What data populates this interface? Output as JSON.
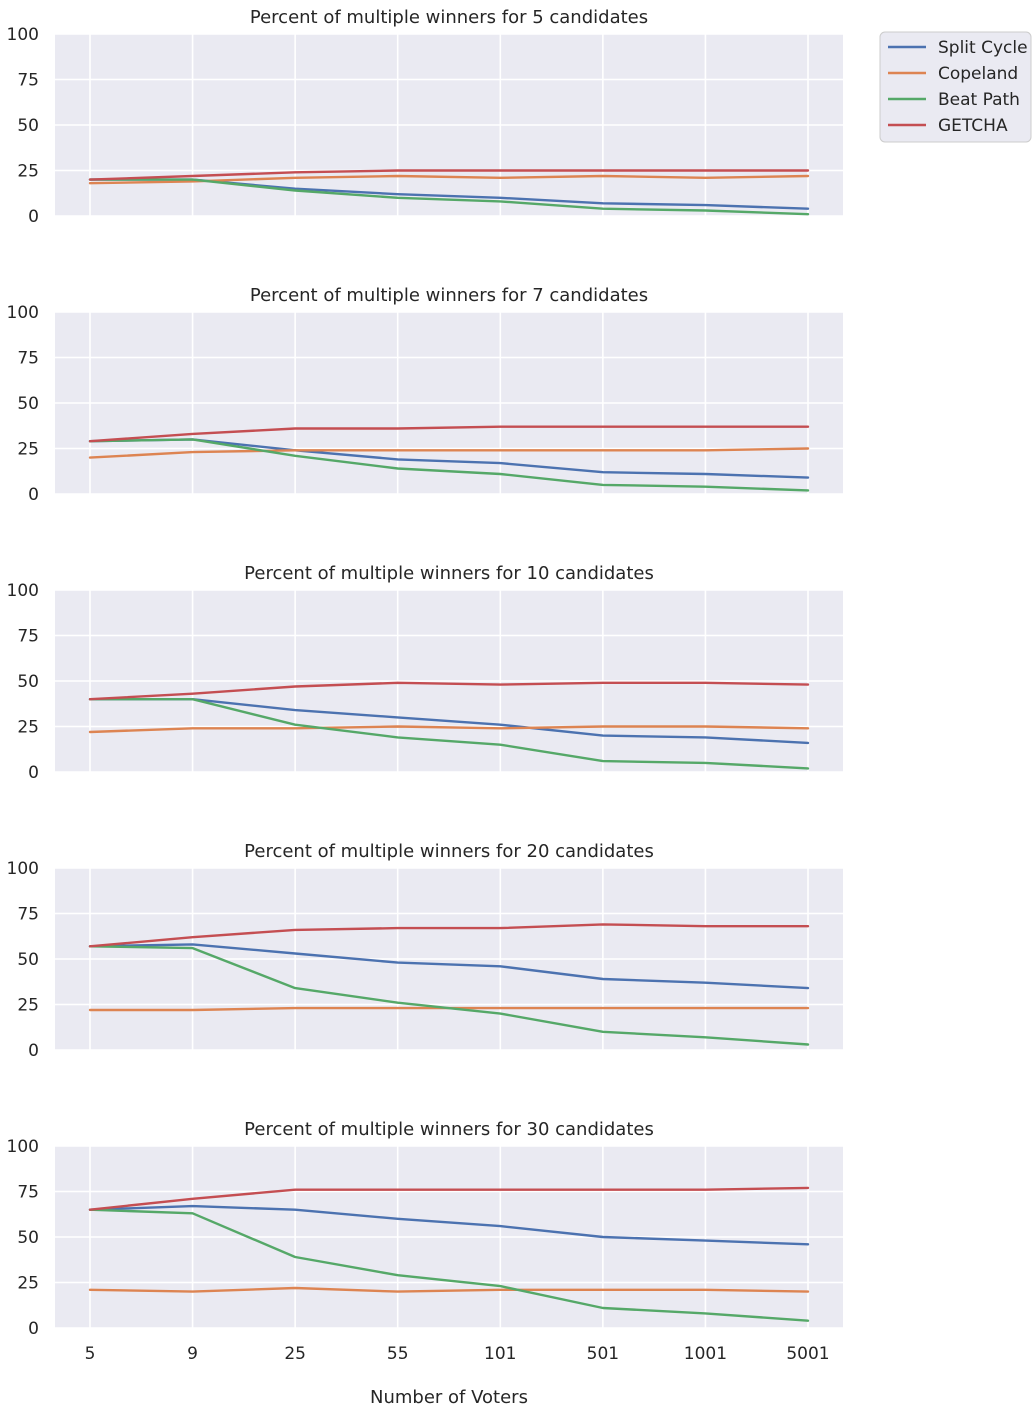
{
  "figure": {
    "xlabel": "Number of Voters",
    "x_ticks": [
      "5",
      "9",
      "25",
      "55",
      "101",
      "501",
      "1001",
      "5001"
    ],
    "y_ticks": [
      "0",
      "25",
      "50",
      "75",
      "100"
    ],
    "colors": {
      "background": "#eaeaf2",
      "grid": "#ffffff",
      "split_cycle": "#4c72b0",
      "copeland": "#dd8452",
      "beat_path": "#55a868",
      "getcha": "#c44e52"
    }
  },
  "legend": {
    "placement": "upper-right-outside",
    "entries": [
      {
        "label": "Split Cycle",
        "color": "#4c72b0"
      },
      {
        "label": "Copeland",
        "color": "#dd8452"
      },
      {
        "label": "Beat Path",
        "color": "#55a868"
      },
      {
        "label": "GETCHA",
        "color": "#c44e52"
      }
    ]
  },
  "chart_data": [
    {
      "type": "line",
      "title": "Percent of multiple winners for 5 candidates",
      "categories": [
        "5",
        "9",
        "25",
        "55",
        "101",
        "501",
        "1001",
        "5001"
      ],
      "ylim": [
        0,
        100
      ],
      "grid": true,
      "series": [
        {
          "name": "Split Cycle",
          "values": [
            20,
            20,
            15,
            12,
            10,
            7,
            6,
            4
          ]
        },
        {
          "name": "Copeland",
          "values": [
            18,
            19,
            21,
            22,
            21,
            22,
            21,
            22
          ]
        },
        {
          "name": "Beat Path",
          "values": [
            20,
            20,
            14,
            10,
            8,
            4,
            3,
            1
          ]
        },
        {
          "name": "GETCHA",
          "values": [
            20,
            22,
            24,
            25,
            25,
            25,
            25,
            25
          ]
        }
      ]
    },
    {
      "type": "line",
      "title": "Percent of multiple winners for 7 candidates",
      "categories": [
        "5",
        "9",
        "25",
        "55",
        "101",
        "501",
        "1001",
        "5001"
      ],
      "ylim": [
        0,
        100
      ],
      "grid": true,
      "series": [
        {
          "name": "Split Cycle",
          "values": [
            29,
            30,
            24,
            19,
            17,
            12,
            11,
            9
          ]
        },
        {
          "name": "Copeland",
          "values": [
            20,
            23,
            24,
            24,
            24,
            24,
            24,
            25
          ]
        },
        {
          "name": "Beat Path",
          "values": [
            29,
            30,
            21,
            14,
            11,
            5,
            4,
            2
          ]
        },
        {
          "name": "GETCHA",
          "values": [
            29,
            33,
            36,
            36,
            37,
            37,
            37,
            37
          ]
        }
      ]
    },
    {
      "type": "line",
      "title": "Percent of multiple winners for 10 candidates",
      "categories": [
        "5",
        "9",
        "25",
        "55",
        "101",
        "501",
        "1001",
        "5001"
      ],
      "ylim": [
        0,
        100
      ],
      "grid": true,
      "series": [
        {
          "name": "Split Cycle",
          "values": [
            40,
            40,
            34,
            30,
            26,
            20,
            19,
            16
          ]
        },
        {
          "name": "Copeland",
          "values": [
            22,
            24,
            24,
            25,
            24,
            25,
            25,
            24
          ]
        },
        {
          "name": "Beat Path",
          "values": [
            40,
            40,
            26,
            19,
            15,
            6,
            5,
            2
          ]
        },
        {
          "name": "GETCHA",
          "values": [
            40,
            43,
            47,
            49,
            48,
            49,
            49,
            48
          ]
        }
      ]
    },
    {
      "type": "line",
      "title": "Percent of multiple winners for 20 candidates",
      "categories": [
        "5",
        "9",
        "25",
        "55",
        "101",
        "501",
        "1001",
        "5001"
      ],
      "ylim": [
        0,
        100
      ],
      "grid": true,
      "series": [
        {
          "name": "Split Cycle",
          "values": [
            57,
            58,
            53,
            48,
            46,
            39,
            37,
            34
          ]
        },
        {
          "name": "Copeland",
          "values": [
            22,
            22,
            23,
            23,
            23,
            23,
            23,
            23
          ]
        },
        {
          "name": "Beat Path",
          "values": [
            57,
            56,
            34,
            26,
            20,
            10,
            7,
            3
          ]
        },
        {
          "name": "GETCHA",
          "values": [
            57,
            62,
            66,
            67,
            67,
            69,
            68,
            68
          ]
        }
      ]
    },
    {
      "type": "line",
      "title": "Percent of multiple winners for 30 candidates",
      "categories": [
        "5",
        "9",
        "25",
        "55",
        "101",
        "501",
        "1001",
        "5001"
      ],
      "ylim": [
        0,
        100
      ],
      "grid": true,
      "series": [
        {
          "name": "Split Cycle",
          "values": [
            65,
            67,
            65,
            60,
            56,
            50,
            48,
            46
          ]
        },
        {
          "name": "Copeland",
          "values": [
            21,
            20,
            22,
            20,
            21,
            21,
            21,
            20
          ]
        },
        {
          "name": "Beat Path",
          "values": [
            65,
            63,
            39,
            29,
            23,
            11,
            8,
            4
          ]
        },
        {
          "name": "GETCHA",
          "values": [
            65,
            71,
            76,
            76,
            76,
            76,
            76,
            77
          ]
        }
      ]
    }
  ]
}
